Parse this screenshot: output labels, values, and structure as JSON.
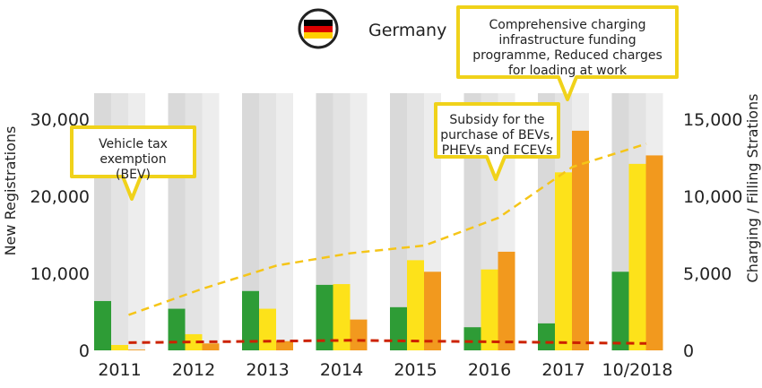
{
  "header": {
    "country": "Germany",
    "flag_icon": "germany-flag-icon",
    "flag_colors": [
      "#000000",
      "#DD0000",
      "#FFCE00"
    ]
  },
  "colors": {
    "green": "#2e9c36",
    "yellow": "#fde21a",
    "orange": "#f2991e",
    "yellow_dashed": "#f5c518",
    "red_dashed": "#cc2200",
    "callout_border": "#f0d21a"
  },
  "chart_data": {
    "type": "bar",
    "categories": [
      "2011",
      "2012",
      "2013",
      "2014",
      "2015",
      "2016",
      "2017",
      "10/2018"
    ],
    "series": [
      {
        "axis": "left",
        "values": [
          6400,
          5400,
          7700,
          8500,
          5600,
          3000,
          3500,
          10200
        ]
      },
      {
        "axis": "left",
        "values": [
          700,
          2100,
          5400,
          8600,
          11700,
          10500,
          23100,
          24200
        ]
      },
      {
        "axis": "left",
        "values": [
          100,
          900,
          1200,
          4000,
          10200,
          12800,
          28500,
          25300
        ]
      }
    ],
    "lines": [
      {
        "axis": "right",
        "style": "dashed",
        "values": [
          2300,
          4000,
          5500,
          6300,
          6800,
          8600,
          11900,
          13400
        ]
      },
      {
        "axis": "right",
        "style": "dashed",
        "values": [
          500,
          550,
          600,
          650,
          600,
          550,
          500,
          450
        ]
      }
    ],
    "ylabel_left": "New Registrations",
    "ylabel_right": "Charging / Filling Strations",
    "ylim_left": [
      0,
      30000
    ],
    "ylim_right": [
      0,
      15000
    ],
    "yticks_left": [
      "0",
      "10,000",
      "20,000",
      "30,000"
    ],
    "yticks_right": [
      "0",
      "5,000",
      "10,000",
      "15,000"
    ],
    "grid": false,
    "annotations": [
      {
        "year": "2011",
        "lines": [
          "Vehicle tax",
          "exemption",
          "(BEV)"
        ]
      },
      {
        "year": "2016",
        "lines": [
          "Subsidy for the",
          "purchase of BEVs,",
          "PHEVs and FCEVs"
        ]
      },
      {
        "year": "2017",
        "lines": [
          "Comprehensive charging",
          "infrastructure funding",
          "programme, Reduced charges",
          "for loading at work"
        ]
      }
    ]
  }
}
